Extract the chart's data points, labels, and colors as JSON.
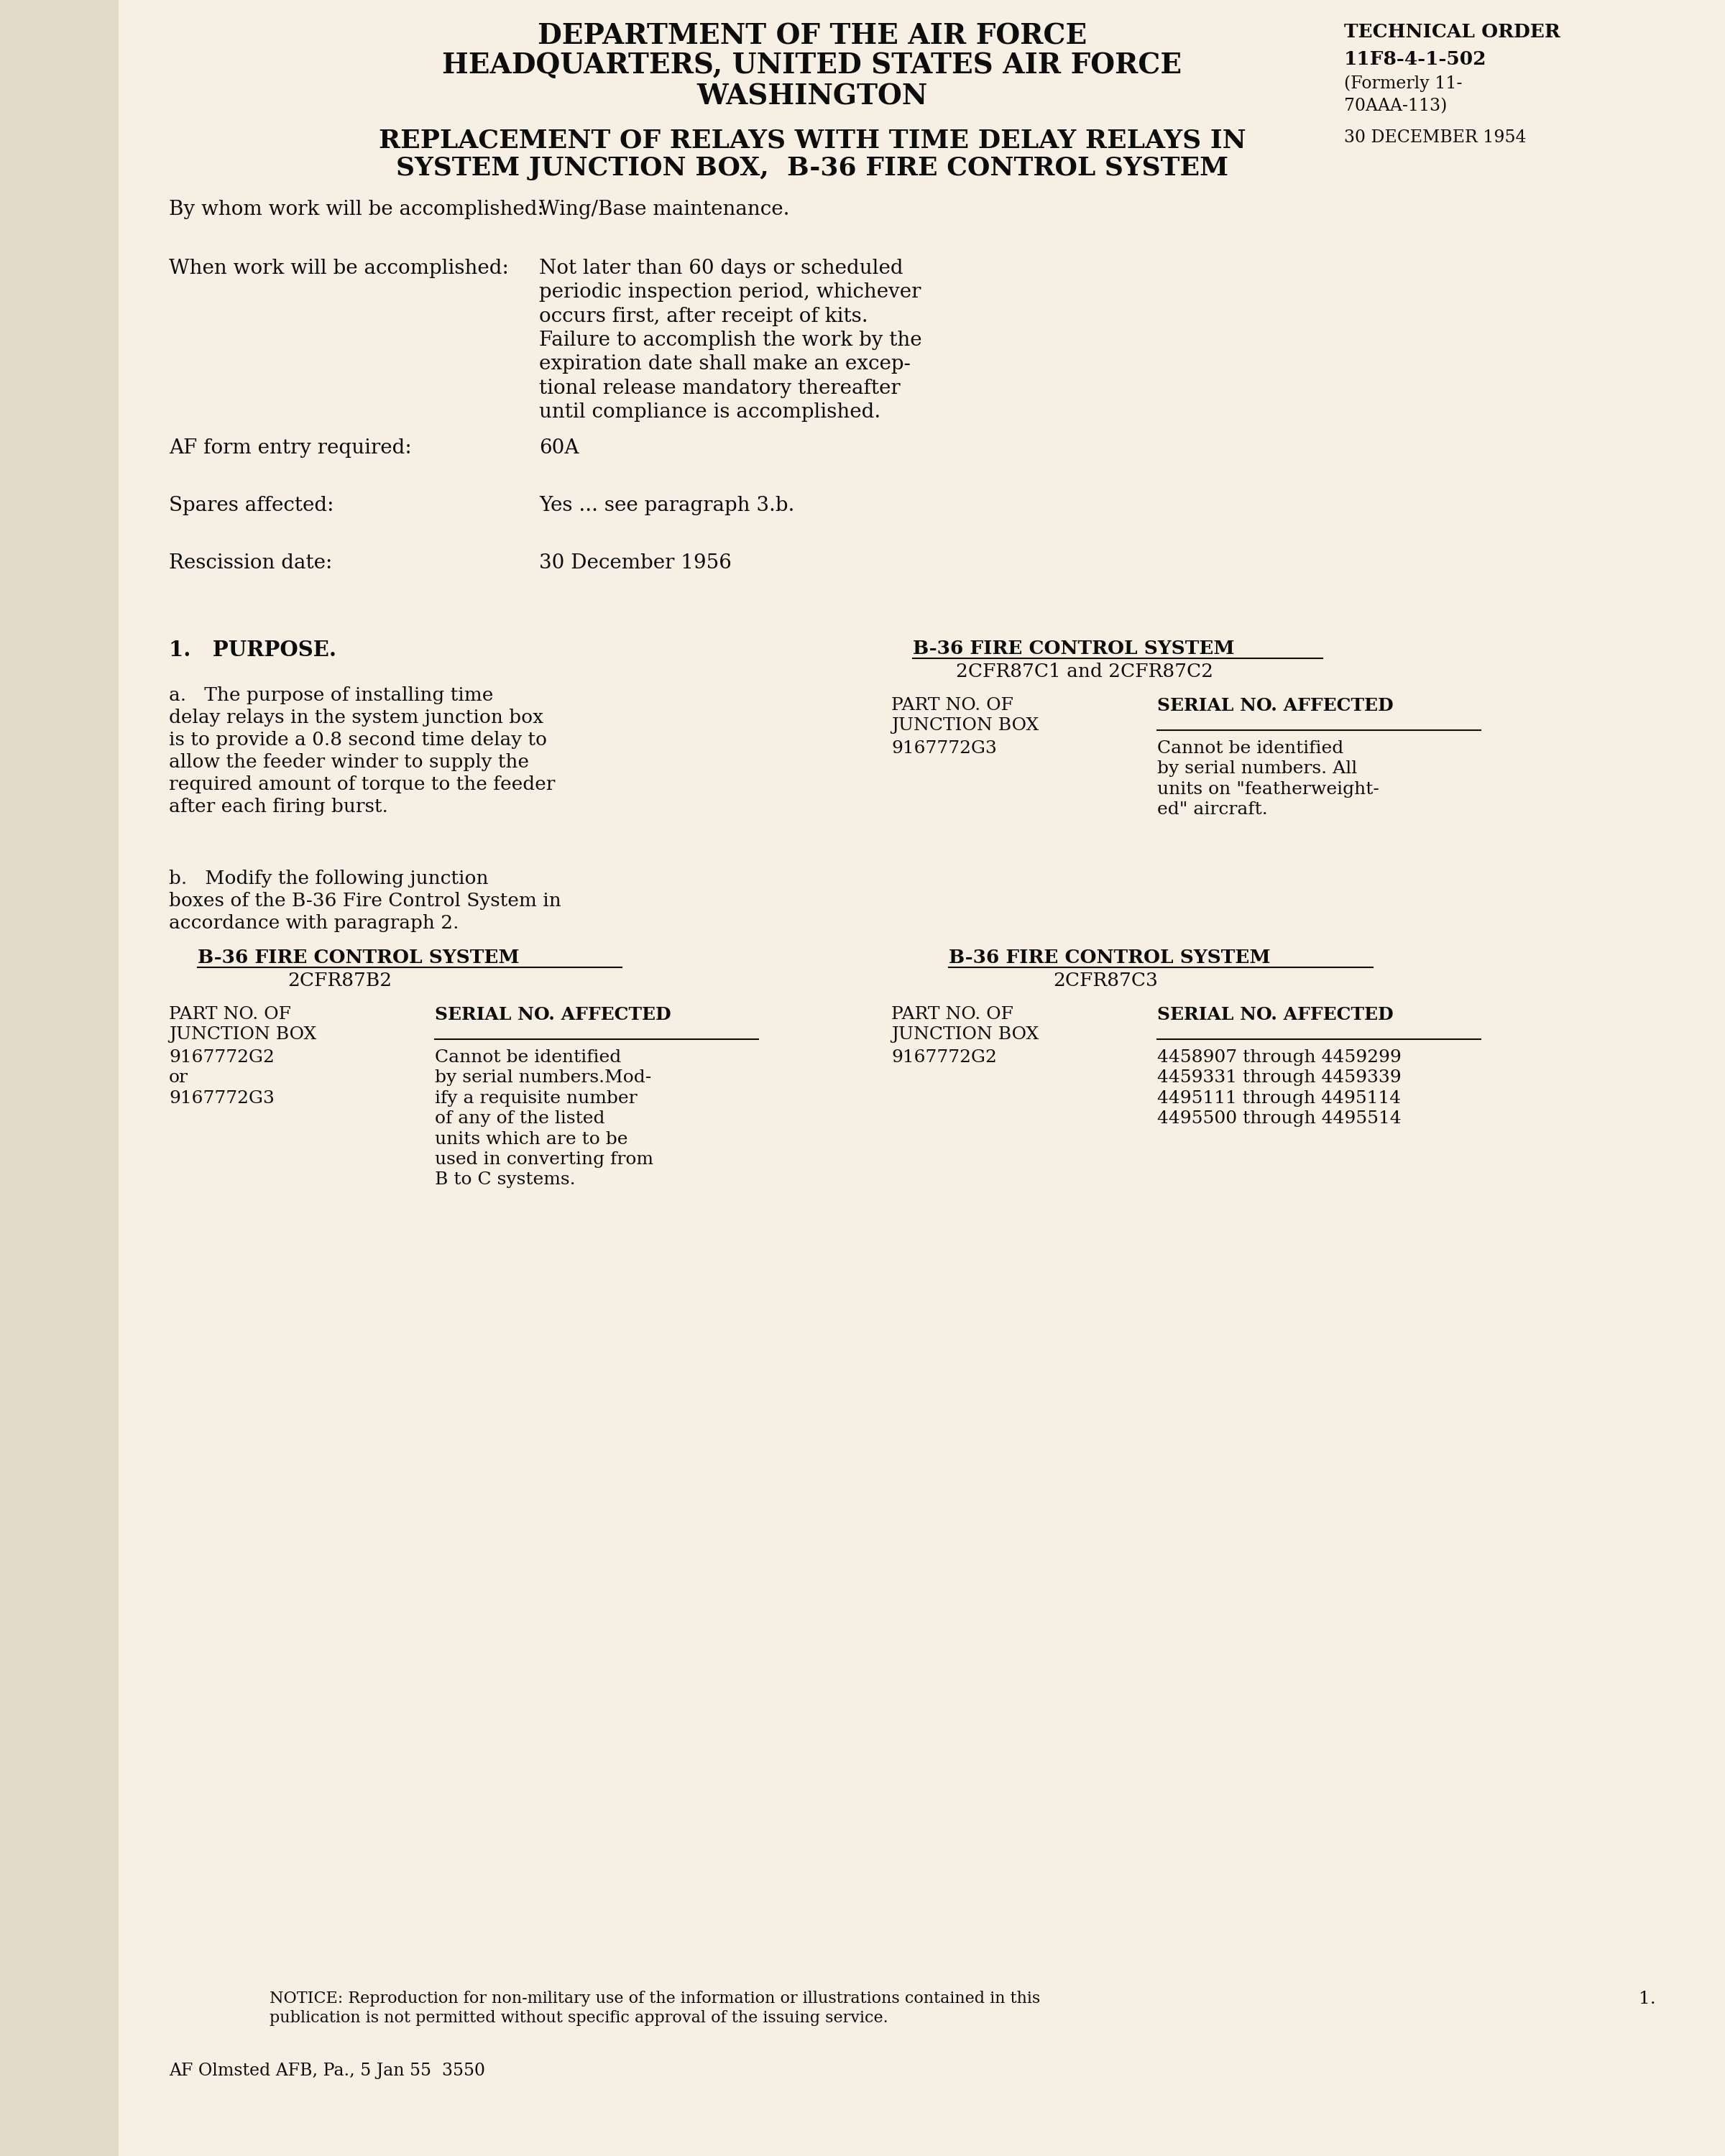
{
  "bg_color": "#f0ead8",
  "page_color": "#f5f0e3",
  "left_shadow_color": "#d8cdb8",
  "text_color": "#0d0d0d",
  "header": {
    "line1": "DEPARTMENT OF THE AIR FORCE",
    "line2": "HEADQUARTERS, UNITED STATES AIR FORCE",
    "line3": "WASHINGTON"
  },
  "tech_order": {
    "line1": "TECHNICAL ORDER",
    "line2": "11F8-4-1-502",
    "line3": "(Formerly 11-",
    "line4": "70AAA-113)",
    "line5": "30 DECEMBER 1954"
  },
  "title_line1": "REPLACEMENT OF RELAYS WITH TIME DELAY RELAYS IN",
  "title_line2": "SYSTEM JUNCTION BOX,  B-36 FIRE CONTROL SYSTEM",
  "field_label1": "By whom work will be accomplished:",
  "field_value1": "Wing/Base maintenance.",
  "field_label2": "When work will be accomplished:",
  "field_value2": "Not later than 60 days or scheduled\nperiodic inspection period, whichever\noccurs first, after receipt of kits.\nFailure to accomplish the work by the\nexpiration date shall make an excep-\ntional release mandatory thereafter\nuntil compliance is accomplished.",
  "field_label3": "AF form entry required:",
  "field_value3": "60A",
  "field_label4": "Spares affected:",
  "field_value4": "Yes ... see paragraph 3.b.",
  "field_label5": "Rescission date:",
  "field_value5": "30 December 1956",
  "sec1_head": "1.   PURPOSE.",
  "para_a": "a.   The purpose of installing time\ndelay relays in the system junction box\nis to provide a 0.8 second time delay to\nallow the feeder winder to supply the\nrequired amount of torque to the feeder\nafter each firing burst.",
  "para_b": "b.   Modify the following junction\nboxes of the B-36 Fire Control System in\naccordance with paragraph 2.",
  "lt1_title1": "B-36 FIRE CONTROL SYSTEM",
  "lt1_title2": "2CFR87B2",
  "lt1_col1_hdr": "PART NO. OF\nJUNCTION BOX",
  "lt1_col2_hdr": "SERIAL NO. AFFECTED",
  "lt1_r1c1": "9167772G2\nor\n9167772G3",
  "lt1_r1c2": "Cannot be identified\nby serial numbers.Mod-\nify a requisite number\nof any of the listed\nunits which are to be\nused in converting from\nB to C systems.",
  "rt1_title1": "B-36 FIRE CONTROL SYSTEM",
  "rt1_title2": "2CFR87C1 and 2CFR87C2",
  "rt1_col1_hdr": "PART NO. OF\nJUNCTION BOX",
  "rt1_col2_hdr": "SERIAL NO. AFFECTED",
  "rt1_r1c1": "9167772G3",
  "rt1_r1c2": "Cannot be identified\nby serial numbers. All\nunits on \"featherweight-\ned\" aircraft.",
  "rt2_title1": "B-36 FIRE CONTROL SYSTEM",
  "rt2_title2": "2CFR87C3",
  "rt2_col1_hdr": "PART NO. OF\nJUNCTION BOX",
  "rt2_col2_hdr": "SERIAL NO. AFFECTED",
  "rt2_r1c1": "9167772G2",
  "rt2_r1c2": "4458907 through 4459299\n4459331 through 4459339\n4495111 through 4495114\n4495500 through 4495514",
  "notice": "NOTICE: Reproduction for non-military use of the information or illustrations contained in this\npublication is not permitted without specific approval of the issuing service.",
  "footer": "AF Olmsted AFB, Pa., 5 Jan 55  3550",
  "page_num": "1."
}
